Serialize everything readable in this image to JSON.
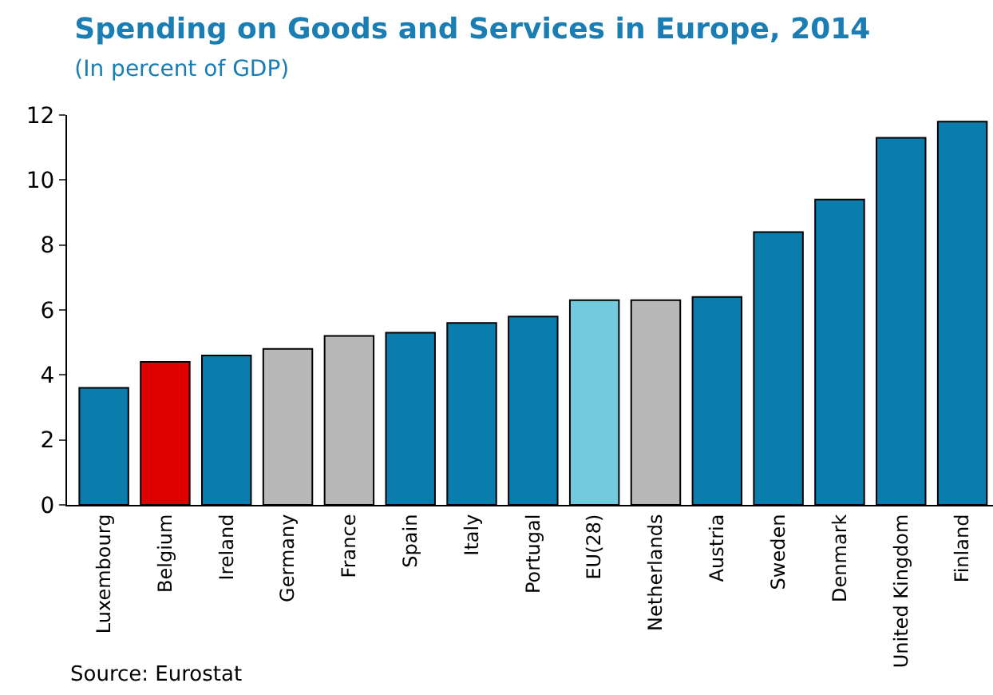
{
  "chart_data": {
    "type": "bar",
    "title": "Spending on Goods and Services in Europe, 2014",
    "subtitle": "(In percent of GDP)",
    "categories": [
      "Luxembourg",
      "Belgium",
      "Ireland",
      "Germany",
      "France",
      "Spain",
      "Italy",
      "Portugal",
      "EU(28)",
      "Netherlands",
      "Austria",
      "Sweden",
      "Denmark",
      "United Kingdom",
      "Finland"
    ],
    "values": [
      3.6,
      4.4,
      4.6,
      4.8,
      5.2,
      5.3,
      5.6,
      5.8,
      6.3,
      6.3,
      6.4,
      8.4,
      9.4,
      11.3,
      11.8
    ],
    "colors": [
      "#0b7dad",
      "#e00000",
      "#0b7dad",
      "#b8b8b8",
      "#b8b8b8",
      "#0b7dad",
      "#0b7dad",
      "#0b7dad",
      "#72cbdc",
      "#b8b8b8",
      "#0b7dad",
      "#0b7dad",
      "#0b7dad",
      "#0b7dad",
      "#0b7dad"
    ],
    "ylim": [
      0,
      12
    ],
    "yticks": [
      0,
      2,
      4,
      6,
      8,
      10,
      12
    ],
    "annotations": [
      "Source: Eurostat"
    ]
  }
}
